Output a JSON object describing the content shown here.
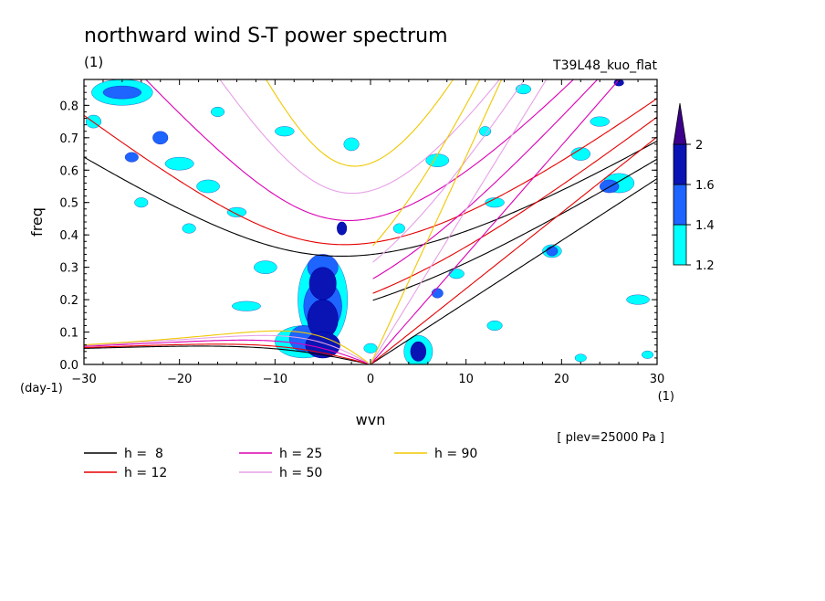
{
  "chart_data": {
    "type": "contour",
    "title": "northward wind S-T power spectrum",
    "subtitle_left": "(1)",
    "subtitle_right": "T39L48_kuo_flat",
    "xlabel": "wvn",
    "ylabel": "freq",
    "x_unit": "(1)",
    "y_unit": "(day-1)",
    "xlim": [
      -30,
      30
    ],
    "ylim": [
      0,
      0.88
    ],
    "x_ticks": [
      "−30",
      "−20",
      "−10",
      "0",
      "10",
      "20",
      "30"
    ],
    "x_tick_values": [
      -30,
      -20,
      -10,
      0,
      10,
      20,
      30
    ],
    "y_ticks": [
      "0.0",
      "0.1",
      "0.2",
      "0.3",
      "0.4",
      "0.5",
      "0.6",
      "0.7",
      "0.8"
    ],
    "y_tick_values": [
      0,
      0.1,
      0.2,
      0.3,
      0.4,
      0.5,
      0.6,
      0.7,
      0.8
    ],
    "annotation": "[ plev=25000 Pa ]",
    "colorbar": {
      "levels": [
        "1.2",
        "1.4",
        "1.6",
        "2"
      ],
      "level_values": [
        1.2,
        1.4,
        1.6,
        2.0
      ],
      "colors": [
        "#00ffff",
        "#1e64ff",
        "#0a14b4",
        "#3c008c"
      ]
    },
    "series": [
      {
        "name": "h =  8",
        "value": 8,
        "color": "#000000"
      },
      {
        "name": "h = 12",
        "value": 12,
        "color": "#e60000"
      },
      {
        "name": "h = 25",
        "value": 25,
        "color": "#dc00b4"
      },
      {
        "name": "h = 50",
        "value": 50,
        "color": "#e6a0e6"
      },
      {
        "name": "h = 90",
        "value": 90,
        "color": "#f0c800"
      }
    ],
    "contour_blobs": [
      {
        "x": -5,
        "y": 0.25,
        "rx": 1.4,
        "ry": 0.05,
        "level": 3
      },
      {
        "x": -5,
        "y": 0.14,
        "rx": 1.6,
        "ry": 0.06,
        "level": 3
      },
      {
        "x": -5,
        "y": 0.06,
        "rx": 1.8,
        "ry": 0.04,
        "level": 3
      },
      {
        "x": -3,
        "y": 0.42,
        "rx": 0.5,
        "ry": 0.02,
        "level": 3
      },
      {
        "x": 5,
        "y": 0.04,
        "rx": 0.8,
        "ry": 0.03,
        "level": 3
      },
      {
        "x": 26,
        "y": 0.87,
        "rx": 0.5,
        "ry": 0.01,
        "level": 3
      },
      {
        "x": -5,
        "y": 0.3,
        "rx": 1.6,
        "ry": 0.04,
        "level": 2
      },
      {
        "x": -5,
        "y": 0.18,
        "rx": 2.0,
        "ry": 0.08,
        "level": 2
      },
      {
        "x": -7,
        "y": 0.08,
        "rx": 1.5,
        "ry": 0.04,
        "level": 2
      },
      {
        "x": -26,
        "y": 0.84,
        "rx": 2.0,
        "ry": 0.02,
        "level": 2
      },
      {
        "x": -22,
        "y": 0.7,
        "rx": 0.8,
        "ry": 0.02,
        "level": 2
      },
      {
        "x": -25,
        "y": 0.64,
        "rx": 0.7,
        "ry": 0.015,
        "level": 2
      },
      {
        "x": 25,
        "y": 0.55,
        "rx": 1.0,
        "ry": 0.02,
        "level": 2
      },
      {
        "x": 7,
        "y": 0.22,
        "rx": 0.6,
        "ry": 0.015,
        "level": 2
      },
      {
        "x": 19,
        "y": 0.35,
        "rx": 0.6,
        "ry": 0.015,
        "level": 2
      },
      {
        "x": -5,
        "y": 0.2,
        "rx": 2.6,
        "ry": 0.14,
        "level": 1
      },
      {
        "x": -7,
        "y": 0.07,
        "rx": 3.0,
        "ry": 0.05,
        "level": 1
      },
      {
        "x": -11,
        "y": 0.3,
        "rx": 1.2,
        "ry": 0.02,
        "level": 1
      },
      {
        "x": -13,
        "y": 0.18,
        "rx": 1.5,
        "ry": 0.015,
        "level": 1
      },
      {
        "x": -26,
        "y": 0.84,
        "rx": 3.2,
        "ry": 0.04,
        "level": 1
      },
      {
        "x": -20,
        "y": 0.62,
        "rx": 1.5,
        "ry": 0.02,
        "level": 1
      },
      {
        "x": -17,
        "y": 0.55,
        "rx": 1.2,
        "ry": 0.02,
        "level": 1
      },
      {
        "x": -14,
        "y": 0.47,
        "rx": 1.0,
        "ry": 0.015,
        "level": 1
      },
      {
        "x": -9,
        "y": 0.72,
        "rx": 1.0,
        "ry": 0.015,
        "level": 1
      },
      {
        "x": -2,
        "y": 0.68,
        "rx": 0.8,
        "ry": 0.02,
        "level": 1
      },
      {
        "x": 7,
        "y": 0.63,
        "rx": 1.2,
        "ry": 0.02,
        "level": 1
      },
      {
        "x": 13,
        "y": 0.5,
        "rx": 1.0,
        "ry": 0.015,
        "level": 1
      },
      {
        "x": 5,
        "y": 0.04,
        "rx": 1.5,
        "ry": 0.05,
        "level": 1
      },
      {
        "x": 0,
        "y": 0.05,
        "rx": 0.7,
        "ry": 0.015,
        "level": 1
      },
      {
        "x": 26,
        "y": 0.56,
        "rx": 1.6,
        "ry": 0.03,
        "level": 1
      },
      {
        "x": 22,
        "y": 0.65,
        "rx": 1.0,
        "ry": 0.02,
        "level": 1
      },
      {
        "x": 28,
        "y": 0.2,
        "rx": 1.2,
        "ry": 0.015,
        "level": 1
      },
      {
        "x": 19,
        "y": 0.35,
        "rx": 1.0,
        "ry": 0.02,
        "level": 1
      },
      {
        "x": 13,
        "y": 0.12,
        "rx": 0.8,
        "ry": 0.015,
        "level": 1
      },
      {
        "x": 24,
        "y": 0.75,
        "rx": 1.0,
        "ry": 0.015,
        "level": 1
      },
      {
        "x": 16,
        "y": 0.85,
        "rx": 0.8,
        "ry": 0.015,
        "level": 1
      },
      {
        "x": -29,
        "y": 0.75,
        "rx": 0.8,
        "ry": 0.02,
        "level": 1
      },
      {
        "x": -19,
        "y": 0.42,
        "rx": 0.7,
        "ry": 0.015,
        "level": 1
      },
      {
        "x": -24,
        "y": 0.5,
        "rx": 0.7,
        "ry": 0.015,
        "level": 1
      },
      {
        "x": 3,
        "y": 0.42,
        "rx": 0.6,
        "ry": 0.015,
        "level": 1
      },
      {
        "x": 9,
        "y": 0.28,
        "rx": 0.8,
        "ry": 0.015,
        "level": 1
      },
      {
        "x": 29,
        "y": 0.03,
        "rx": 0.6,
        "ry": 0.012,
        "level": 1
      },
      {
        "x": 22,
        "y": 0.02,
        "rx": 0.6,
        "ry": 0.012,
        "level": 1
      },
      {
        "x": -16,
        "y": 0.78,
        "rx": 0.7,
        "ry": 0.015,
        "level": 1
      },
      {
        "x": 12,
        "y": 0.72,
        "rx": 0.6,
        "ry": 0.015,
        "level": 1
      }
    ]
  }
}
